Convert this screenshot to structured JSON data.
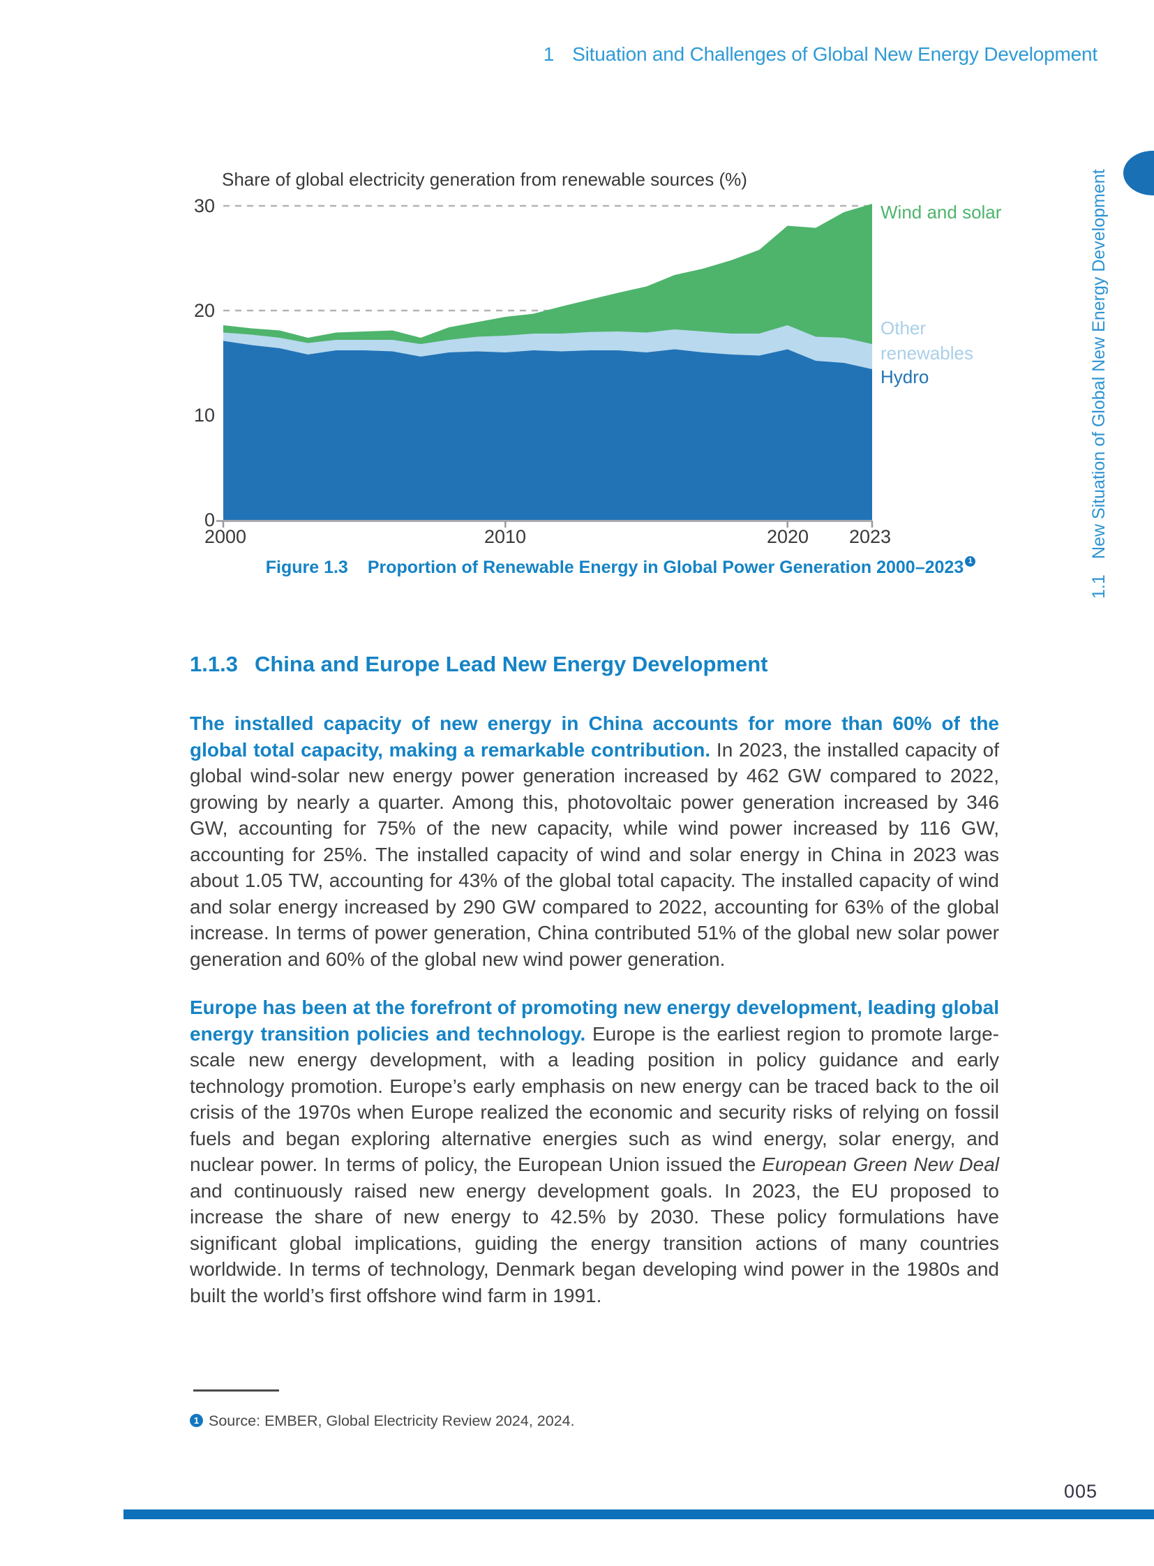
{
  "header": {
    "chapter_number": "1",
    "title": "Situation and Challenges of Global New Energy Development"
  },
  "sidebar": {
    "section_number": "1.1",
    "title": "New Situation of Global New Energy Development"
  },
  "chart_data": {
    "type": "area",
    "stacked": true,
    "title": "Share of global electricity generation from renewable sources (%)",
    "ylim": [
      0,
      30
    ],
    "gridlines": [
      20,
      30
    ],
    "gridline_color": "#b3b3b3",
    "years": [
      2000,
      2001,
      2002,
      2003,
      2004,
      2005,
      2006,
      2007,
      2008,
      2009,
      2010,
      2011,
      2012,
      2013,
      2014,
      2015,
      2016,
      2017,
      2018,
      2019,
      2020,
      2021,
      2022,
      2023
    ],
    "series": [
      {
        "name": "Hydro",
        "color": "#2273b6",
        "label_color": "#2273b6",
        "values": [
          17.1,
          16.7,
          16.4,
          15.8,
          16.2,
          16.2,
          16.1,
          15.6,
          16.0,
          16.1,
          16.0,
          16.2,
          16.1,
          16.2,
          16.2,
          16.0,
          16.3,
          16.0,
          15.8,
          15.7,
          16.3,
          15.2,
          15.0,
          14.4
        ]
      },
      {
        "name": "Other renewables",
        "color": "#b9d9ee",
        "label_color": "#a9cfe9",
        "values": [
          0.8,
          1.0,
          1.0,
          1.1,
          1.0,
          1.0,
          1.1,
          1.2,
          1.2,
          1.4,
          1.6,
          1.6,
          1.7,
          1.75,
          1.8,
          1.9,
          1.9,
          2.0,
          2.0,
          2.1,
          2.3,
          2.3,
          2.4,
          2.4
        ]
      },
      {
        "name": "Wind and solar",
        "color": "#4eb46c",
        "label_color": "#4eb46c",
        "values": [
          0.7,
          0.6,
          0.7,
          0.5,
          0.7,
          0.8,
          0.9,
          0.6,
          1.2,
          1.4,
          1.8,
          1.9,
          2.6,
          3.1,
          3.7,
          4.4,
          5.2,
          6.0,
          7.0,
          8.0,
          9.5,
          10.4,
          12.0,
          13.4
        ]
      }
    ],
    "y_ticks": [
      {
        "label": "30",
        "value": 30
      },
      {
        "label": "20",
        "value": 20
      },
      {
        "label": "10",
        "value": 10
      },
      {
        "label": "0",
        "value": 0
      }
    ],
    "x_ticks": [
      {
        "label": "2000",
        "year": 2000
      },
      {
        "label": "2010",
        "year": 2010
      },
      {
        "label": "2020",
        "year": 2020
      },
      {
        "label": "2023",
        "year": 2023
      }
    ],
    "x_tick_years": [
      2000,
      2010,
      2020,
      2023
    ],
    "legend_position": "right"
  },
  "figure": {
    "caption_label": "Figure 1.3",
    "caption_text": "Proportion of Renewable Energy in Global Power Generation 2000–2023",
    "caption_footnote_marker": "1"
  },
  "section": {
    "number": "1.1.3",
    "title": "China and Europe Lead New Energy Development"
  },
  "paragraphs": [
    {
      "lead": "The installed capacity of new energy in China accounts for more than 60% of the global total capacity, making a remarkable contribution.",
      "text": " In 2023, the installed capacity of global wind-solar new energy power generation increased by 462 GW compared to 2022, growing by nearly a quarter. Among this, photovoltaic power generation increased by 346 GW, accounting for 75% of the new capacity, while wind power increased by 116 GW, accounting for 25%. The installed capacity of wind and solar energy in China in 2023 was about 1.05 TW, accounting for 43% of the global total capacity. The installed capacity of wind and solar energy increased by 290 GW compared to 2022, accounting for 63% of the global increase. In terms of power generation, China contributed 51% of the global new solar power generation and 60% of the global new wind power generation."
    },
    {
      "lead": "Europe has been at the forefront of promoting new energy development, leading global energy transition policies and technology.",
      "text1": " Europe is the earliest region to promote large-scale new energy development, with a leading position in policy guidance and early technology promotion. Europe’s early emphasis on new energy can be traced back to the oil crisis of the 1970s when Europe realized the economic and security risks of relying on fossil fuels and began exploring alternative energies such as wind energy, solar energy, and nuclear power. In terms of policy, the European Union issued the ",
      "italic": "European Green New Deal",
      "text2": " and continuously raised new energy development goals. In 2023, the EU proposed to increase the share of new energy to 42.5% by 2030. These policy formulations have significant global implications, guiding the energy transition actions of many countries worldwide. In terms of technology, Denmark began developing wind power in the 1980s and built the world’s first offshore wind farm in 1991."
    }
  ],
  "footnote": {
    "marker": "1",
    "text": "Source: EMBER, Global Electricity Review 2024, 2024."
  },
  "page_number": "005",
  "colors": {
    "accent_blue": "#1583c5",
    "header_blue": "#2f9ad5",
    "sidebar_blue": "#2e93d1",
    "tab_blue": "#1a70b5",
    "footer_bar_blue": "#0c70ba",
    "footnote_marker_blue": "#1377c0"
  }
}
